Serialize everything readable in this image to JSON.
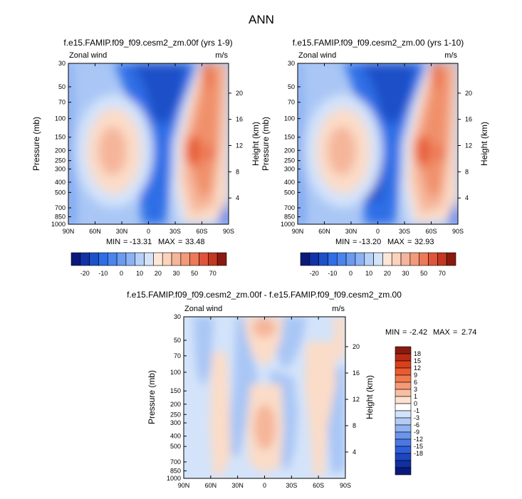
{
  "page": {
    "title": "ANN"
  },
  "colors": {
    "blue_dark": "#1e50c8",
    "blue_mid": "#2e6ee6",
    "blue_light": "#6b9af0",
    "blue_pale": "#a9c6f5",
    "blue_paler": "#d3e3fa",
    "red_dark": "#e8603a",
    "red_mid": "#f0906a",
    "red_light": "#f5b59a",
    "red_pale": "#fbdcc8",
    "white": "#ffffff"
  },
  "chart_data": [
    {
      "type": "contour",
      "title": "f.e15.FAMIP.f09_f09.cesm2_zm.00f (yrs 1-9)",
      "variable": "Zonal wind",
      "units": "m/s",
      "ylabel_left": "Pressure (mb)",
      "ylabel_right": "Height (km)",
      "x_ticks": [
        "90N",
        "60N",
        "30N",
        "0",
        "30S",
        "60S",
        "90S"
      ],
      "y_ticks": [
        "30",
        "50",
        "70",
        "100",
        "150",
        "200",
        "250",
        "300",
        "400",
        "500",
        "700",
        "850",
        "1000"
      ],
      "height_ticks": [
        "20",
        "16",
        "12",
        "8",
        "4"
      ],
      "min": "-13.31",
      "max": "33.48",
      "min_label": "MIN",
      "max_label": "MAX",
      "colorbar_ticks": [
        "-20",
        "-10",
        "0",
        "10",
        "20",
        "30",
        "50",
        "70"
      ]
    },
    {
      "type": "contour",
      "title": "f.e15.FAMIP.f09_f09.cesm2_zm.00 (yrs 1-10)",
      "variable": "Zonal wind",
      "units": "m/s",
      "ylabel_left": "Pressure (mb)",
      "ylabel_right": "Height (km)",
      "x_ticks": [
        "90N",
        "60N",
        "30N",
        "0",
        "30S",
        "60S",
        "90S"
      ],
      "y_ticks": [
        "30",
        "50",
        "70",
        "100",
        "150",
        "200",
        "250",
        "300",
        "400",
        "500",
        "700",
        "850",
        "1000"
      ],
      "height_ticks": [
        "20",
        "16",
        "12",
        "8",
        "4"
      ],
      "min": "-13.20",
      "max": "32.93",
      "min_label": "MIN",
      "max_label": "MAX",
      "colorbar_ticks": [
        "-20",
        "-10",
        "0",
        "10",
        "20",
        "30",
        "50",
        "70"
      ]
    },
    {
      "type": "contour",
      "title": "f.e15.FAMIP.f09_f09.cesm2_zm.00f - f.e15.FAMIP.f09_f09.cesm2_zm.00",
      "variable": "Zonal wind",
      "units": "m/s",
      "ylabel_left": "Pressure (mb)",
      "ylabel_right": "Height (km)",
      "x_ticks": [
        "90N",
        "60N",
        "30N",
        "0",
        "30S",
        "60S",
        "90S"
      ],
      "y_ticks": [
        "30",
        "50",
        "70",
        "100",
        "150",
        "200",
        "250",
        "300",
        "400",
        "500",
        "700",
        "850",
        "1000"
      ],
      "height_ticks": [
        "20",
        "16",
        "12",
        "8",
        "4"
      ],
      "min": "-2.42",
      "max": "2.74",
      "min_label": "MIN",
      "max_label": "MAX",
      "colorbar_ticks": [
        "18",
        "15",
        "12",
        "9",
        "6",
        "3",
        "1",
        "0",
        "-1",
        "-3",
        "-6",
        "-9",
        "-12",
        "-15",
        "-18"
      ]
    }
  ]
}
